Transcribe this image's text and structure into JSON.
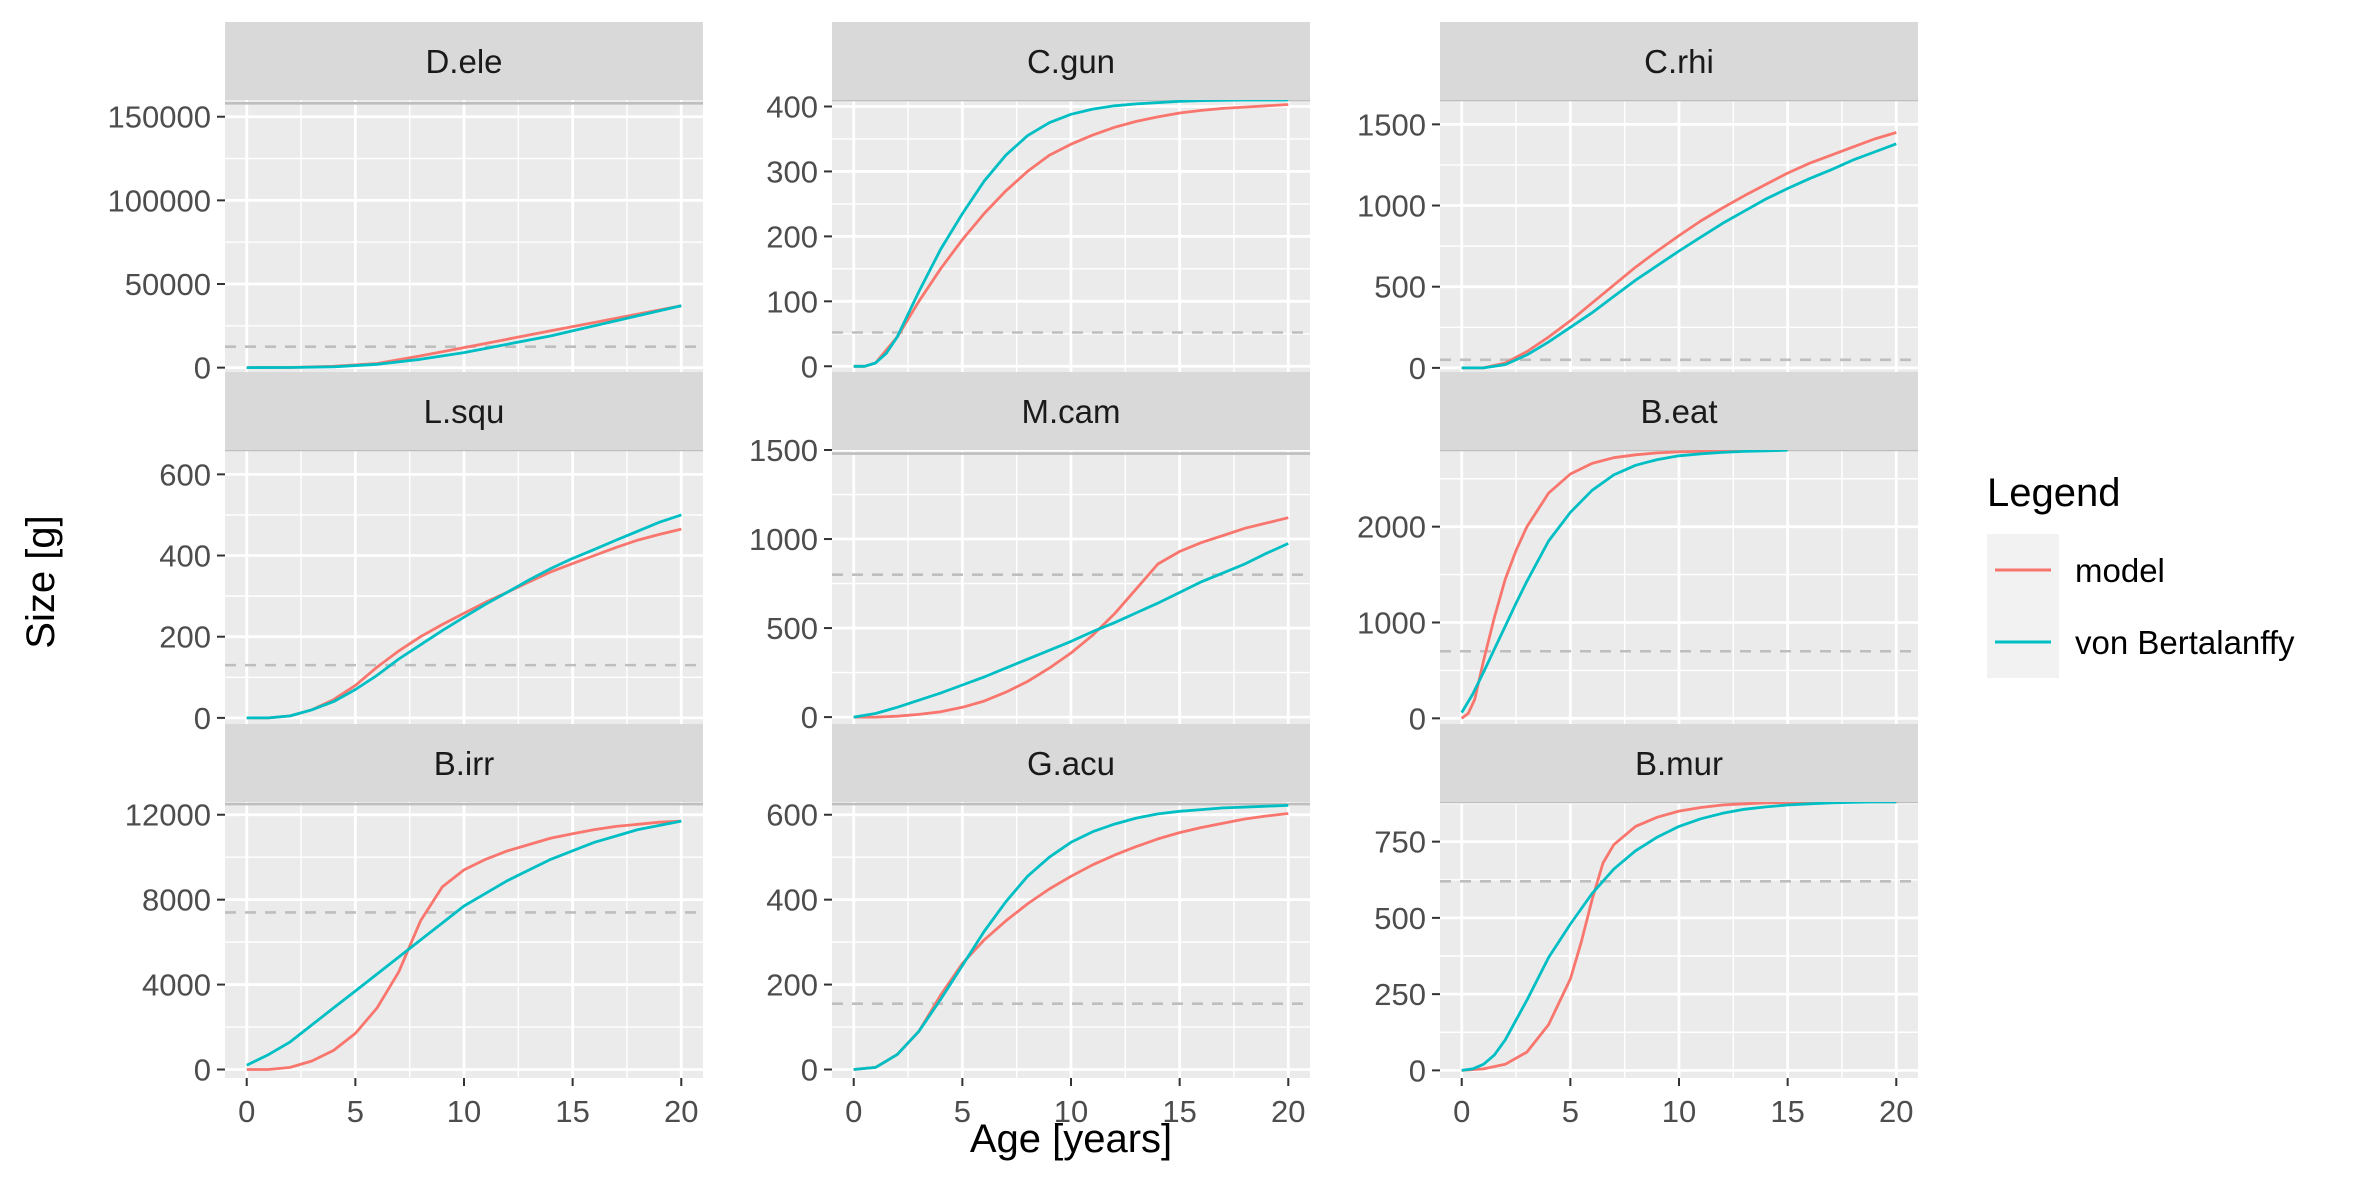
{
  "chart_data": {
    "type": "line",
    "xlabel": "Age [years]",
    "ylabel": "Size [g]",
    "legend": {
      "title": "Legend",
      "position": "right",
      "entries": [
        {
          "name": "model",
          "color": "#F8766D"
        },
        {
          "name": "von Bertalanffy",
          "color": "#00BFC4"
        }
      ]
    },
    "panel_background": "#EBEBEB",
    "strip_background": "#D9D9D9",
    "grid": true,
    "x_ticks": [
      0,
      5,
      10,
      15,
      20
    ],
    "xlim": [
      -1,
      21
    ],
    "panels": [
      {
        "title": "D.ele",
        "ylim": [
          -5000,
          160000
        ],
        "y_ticks": [
          0,
          50000,
          100000,
          150000
        ],
        "y_tick_labels": [
          "0",
          "50000",
          "100000",
          "150000"
        ],
        "asymptote_solid": 158000,
        "maturity_dashed": 12500,
        "series": [
          {
            "name": "model",
            "x": [
              0,
              2,
              4,
              6,
              8,
              10,
              12,
              14,
              16,
              18,
              20
            ],
            "y": [
              0,
              100,
              800,
              2500,
              7000,
              12000,
              17000,
              22000,
              27000,
              32000,
              37000
            ]
          },
          {
            "name": "von Bertalanffy",
            "x": [
              0,
              2,
              4,
              6,
              8,
              10,
              12,
              14,
              16,
              18,
              20
            ],
            "y": [
              0,
              100,
              500,
              2000,
              5000,
              9000,
              14000,
              19000,
              25000,
              31000,
              37000
            ]
          }
        ]
      },
      {
        "title": "C.gun",
        "ylim": [
          -15,
          410
        ],
        "y_ticks": [
          0,
          100,
          200,
          300,
          400
        ],
        "y_tick_labels": [
          "0",
          "100",
          "200",
          "300",
          "400"
        ],
        "asymptote_solid": 410,
        "maturity_dashed": 52,
        "series": [
          {
            "name": "model",
            "x": [
              0,
              0.5,
              1,
              1.5,
              2,
              3,
              4,
              5,
              6,
              7,
              8,
              9,
              10,
              11,
              12,
              13,
              14,
              15,
              16,
              17,
              18,
              19,
              20
            ],
            "y": [
              0,
              0,
              5,
              25,
              45,
              100,
              150,
              195,
              235,
              270,
              300,
              325,
              342,
              356,
              368,
              377,
              384,
              390,
              394,
              397,
              399,
              401,
              403
            ]
          },
          {
            "name": "von Bertalanffy",
            "x": [
              0,
              0.5,
              1,
              1.5,
              2,
              2.5,
              3,
              4,
              5,
              6,
              7,
              8,
              9,
              10,
              11,
              12,
              13,
              14,
              15,
              16,
              18,
              20
            ],
            "y": [
              0,
              0,
              5,
              20,
              45,
              80,
              115,
              180,
              235,
              285,
              325,
              355,
              375,
              388,
              396,
              401,
              404,
              406,
              408,
              409,
              410,
              410
            ]
          }
        ]
      },
      {
        "title": "C.rhi",
        "ylim": [
          -50,
          1650
        ],
        "y_ticks": [
          0,
          500,
          1000,
          1500
        ],
        "y_tick_labels": [
          "0",
          "500",
          "1000",
          "1500"
        ],
        "asymptote_solid": 1650,
        "maturity_dashed": 50,
        "series": [
          {
            "name": "model",
            "x": [
              0,
              1,
              2,
              3,
              4,
              5,
              6,
              7,
              8,
              9,
              10,
              11,
              12,
              13,
              14,
              15,
              16,
              17,
              18,
              19,
              20
            ],
            "y": [
              0,
              0,
              30,
              100,
              190,
              290,
              400,
              510,
              620,
              720,
              815,
              905,
              985,
              1060,
              1130,
              1200,
              1260,
              1310,
              1360,
              1410,
              1450
            ]
          },
          {
            "name": "von Bertalanffy",
            "x": [
              0,
              1,
              2,
              3,
              4,
              5,
              6,
              7,
              8,
              9,
              10,
              11,
              12,
              13,
              14,
              15,
              16,
              17,
              18,
              19,
              20
            ],
            "y": [
              0,
              0,
              20,
              80,
              160,
              250,
              340,
              440,
              540,
              630,
              720,
              805,
              890,
              965,
              1040,
              1105,
              1165,
              1220,
              1280,
              1330,
              1380
            ]
          }
        ]
      },
      {
        "title": "L.squ",
        "ylim": [
          -20,
          660
        ],
        "y_ticks": [
          0,
          200,
          400,
          600
        ],
        "y_tick_labels": [
          "0",
          "200",
          "400",
          "600"
        ],
        "asymptote_solid": 660,
        "maturity_dashed": 130,
        "series": [
          {
            "name": "model",
            "x": [
              0,
              1,
              2,
              3,
              4,
              5,
              6,
              7,
              8,
              9,
              10,
              11,
              12,
              13,
              14,
              15,
              16,
              17,
              18,
              19,
              20
            ],
            "y": [
              0,
              0,
              5,
              20,
              45,
              80,
              125,
              165,
              200,
              230,
              258,
              285,
              310,
              335,
              360,
              380,
              400,
              420,
              438,
              452,
              465
            ]
          },
          {
            "name": "von Bertalanffy",
            "x": [
              0,
              1,
              2,
              3,
              4,
              5,
              6,
              7,
              8,
              9,
              10,
              11,
              12,
              13,
              14,
              15,
              16,
              17,
              18,
              19,
              20
            ],
            "y": [
              0,
              0,
              5,
              20,
              40,
              70,
              105,
              145,
              180,
              215,
              248,
              280,
              310,
              340,
              368,
              393,
              415,
              438,
              460,
              482,
              500
            ]
          }
        ]
      },
      {
        "title": "M.cam",
        "ylim": [
          -50,
          1500
        ],
        "y_ticks": [
          0,
          500,
          1000,
          1500
        ],
        "y_tick_labels": [
          "0",
          "500",
          "1000",
          "1500"
        ],
        "asymptote_solid": 1480,
        "maturity_dashed": 800,
        "series": [
          {
            "name": "model",
            "x": [
              0,
              1,
              2,
              3,
              4,
              5,
              6,
              7,
              8,
              9,
              10,
              11,
              12,
              13,
              14,
              15,
              16,
              17,
              18,
              19,
              20
            ],
            "y": [
              0,
              0,
              5,
              15,
              30,
              55,
              90,
              140,
              200,
              275,
              360,
              460,
              580,
              720,
              860,
              930,
              980,
              1020,
              1060,
              1090,
              1120
            ]
          },
          {
            "name": "von Bertalanffy",
            "x": [
              0,
              1,
              2,
              3,
              4,
              5,
              6,
              7,
              8,
              9,
              10,
              11,
              12,
              13,
              14,
              15,
              16,
              17,
              18,
              19,
              20
            ],
            "y": [
              0,
              20,
              55,
              95,
              135,
              180,
              225,
              275,
              325,
              375,
              425,
              480,
              530,
              585,
              640,
              700,
              760,
              810,
              860,
              920,
              975
            ]
          }
        ]
      },
      {
        "title": "B.eat",
        "ylim": [
          -80,
          2800
        ],
        "y_ticks": [
          0,
          1000,
          2000
        ],
        "y_tick_labels": [
          "0",
          "1000",
          "2000"
        ],
        "asymptote_solid": 2800,
        "maturity_dashed": 700,
        "series": [
          {
            "name": "model",
            "x": [
              0,
              0.3,
              0.6,
              1,
              1.5,
              2,
              2.5,
              3,
              4,
              5,
              6,
              7,
              8,
              9,
              10,
              11,
              12,
              13,
              14,
              15
            ],
            "y": [
              0,
              50,
              200,
              600,
              1050,
              1450,
              1750,
              2000,
              2350,
              2550,
              2660,
              2720,
              2750,
              2770,
              2780,
              2785,
              2790,
              2792,
              2795,
              2800
            ]
          },
          {
            "name": "von Bertalanffy",
            "x": [
              0,
              0.5,
              1,
              1.5,
              2,
              2.5,
              3,
              4,
              5,
              6,
              7,
              8,
              9,
              10,
              11,
              12,
              13,
              14,
              15
            ],
            "y": [
              60,
              250,
              480,
              720,
              960,
              1200,
              1430,
              1850,
              2150,
              2380,
              2540,
              2640,
              2700,
              2740,
              2760,
              2775,
              2785,
              2792,
              2798
            ]
          }
        ]
      },
      {
        "title": "B.irr",
        "ylim": [
          -400,
          12600
        ],
        "y_ticks": [
          0,
          4000,
          8000,
          12000
        ],
        "y_tick_labels": [
          "0",
          "4000",
          "8000",
          "12000"
        ],
        "asymptote_solid": 12500,
        "maturity_dashed": 7400,
        "series": [
          {
            "name": "model",
            "x": [
              0,
              1,
              2,
              3,
              4,
              5,
              6,
              7,
              8,
              9,
              10,
              11,
              12,
              13,
              14,
              15,
              16,
              17,
              18,
              19,
              20
            ],
            "y": [
              0,
              0,
              100,
              400,
              900,
              1700,
              2900,
              4600,
              7000,
              8600,
              9400,
              9900,
              10300,
              10600,
              10900,
              11100,
              11300,
              11450,
              11550,
              11650,
              11700
            ]
          },
          {
            "name": "von Bertalanffy",
            "x": [
              0,
              1,
              2,
              3,
              4,
              5,
              6,
              7,
              8,
              9,
              10,
              11,
              12,
              13,
              14,
              15,
              16,
              17,
              18,
              19,
              20
            ],
            "y": [
              200,
              700,
              1300,
              2100,
              2900,
              3700,
              4500,
              5300,
              6100,
              6900,
              7700,
              8300,
              8900,
              9400,
              9900,
              10300,
              10700,
              11000,
              11300,
              11500,
              11700
            ]
          }
        ]
      },
      {
        "title": "G.acu",
        "ylim": [
          -20,
          630
        ],
        "y_ticks": [
          0,
          200,
          400,
          600
        ],
        "y_tick_labels": [
          "0",
          "200",
          "400",
          "600"
        ],
        "asymptote_solid": 625,
        "maturity_dashed": 155,
        "series": [
          {
            "name": "model",
            "x": [
              0,
              1,
              2,
              3,
              4,
              5,
              6,
              7,
              8,
              9,
              10,
              11,
              12,
              13,
              14,
              15,
              16,
              17,
              18,
              19,
              20
            ],
            "y": [
              0,
              5,
              35,
              90,
              175,
              250,
              305,
              350,
              390,
              425,
              455,
              482,
              505,
              525,
              543,
              558,
              570,
              580,
              590,
              597,
              603
            ]
          },
          {
            "name": "von Bertalanffy",
            "x": [
              0,
              1,
              2,
              3,
              4,
              5,
              6,
              7,
              8,
              9,
              10,
              11,
              12,
              13,
              14,
              15,
              16,
              17,
              18,
              19,
              20
            ],
            "y": [
              0,
              5,
              35,
              90,
              165,
              245,
              325,
              395,
              455,
              500,
              535,
              560,
              578,
              592,
              602,
              608,
              612,
              616,
              618,
              620,
              622
            ]
          }
        ]
      },
      {
        "title": "B.mur",
        "ylim": [
          -25,
          880
        ],
        "y_ticks": [
          0,
          250,
          500,
          750
        ],
        "y_tick_labels": [
          "0",
          "250",
          "500",
          "750"
        ],
        "asymptote_solid": 880,
        "maturity_dashed": 620,
        "series": [
          {
            "name": "model",
            "x": [
              0,
              1,
              2,
              3,
              4,
              5,
              5.5,
              6,
              6.5,
              7,
              8,
              9,
              10,
              11,
              12,
              13,
              14,
              15,
              16,
              17,
              18,
              19,
              20
            ],
            "y": [
              0,
              5,
              20,
              60,
              150,
              300,
              420,
              560,
              680,
              740,
              800,
              830,
              850,
              862,
              870,
              874,
              877,
              878,
              879,
              880,
              880,
              880,
              880
            ]
          },
          {
            "name": "von Bertalanffy",
            "x": [
              0,
              0.5,
              1,
              1.5,
              2,
              3,
              4,
              5,
              6,
              7,
              8,
              9,
              10,
              11,
              12,
              13,
              14,
              15,
              16,
              17,
              18,
              19,
              20
            ],
            "y": [
              0,
              5,
              20,
              50,
              100,
              230,
              370,
              480,
              580,
              660,
              720,
              765,
              800,
              825,
              843,
              856,
              864,
              870,
              874,
              877,
              879,
              880,
              880
            ]
          }
        ]
      }
    ]
  }
}
